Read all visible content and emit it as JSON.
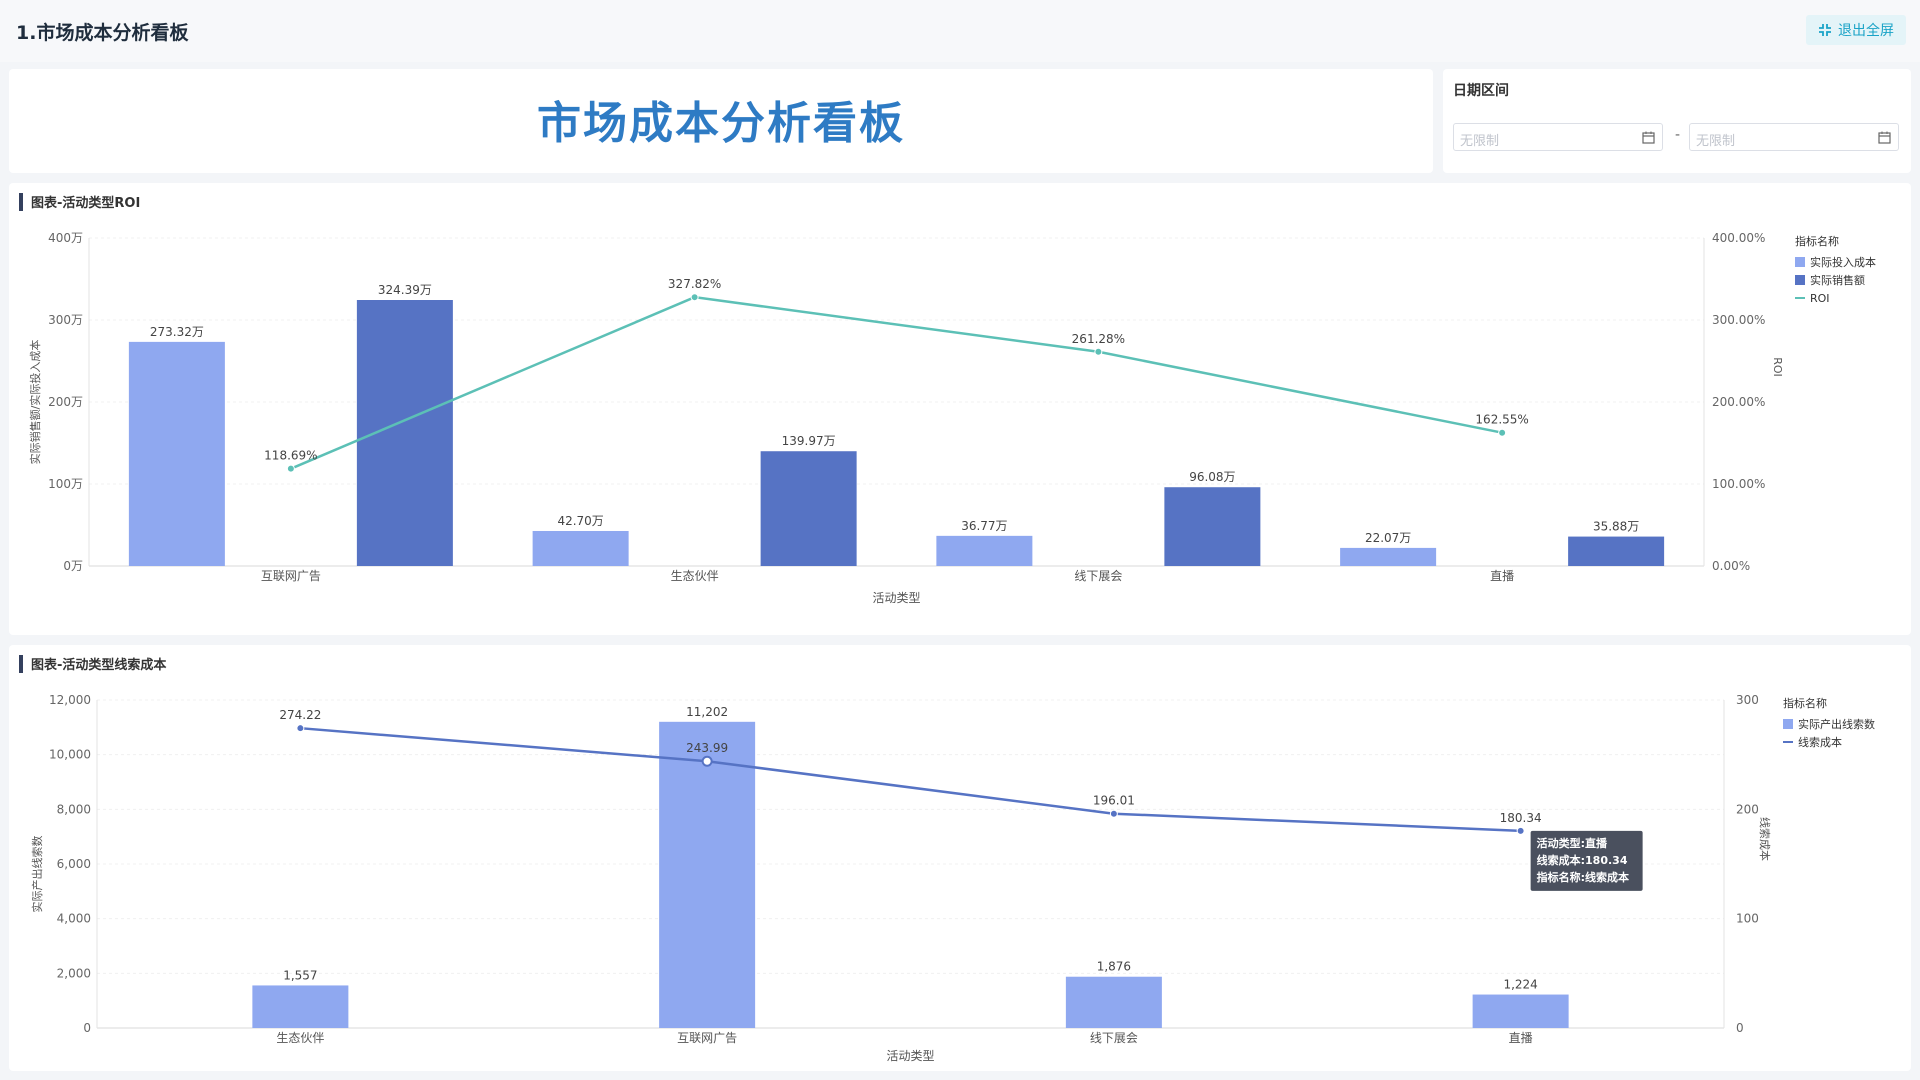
{
  "page": {
    "title": "1.市场成本分析看板",
    "exit_label": "退出全屏"
  },
  "banner": {
    "title": "市场成本分析看板"
  },
  "filter": {
    "label": "日期区间",
    "start_placeholder": "无限制",
    "end_placeholder": "无限制",
    "separator": "-"
  },
  "colors": {
    "cost": "#8fa8f0",
    "sales": "#5673c4",
    "roi_line": "#5cc0b6",
    "lead_line": "#5673c4",
    "banner": "#2e7bc4",
    "accent": "#1aa3c7"
  },
  "chart1": {
    "title": "图表-活动类型ROI",
    "chart_data": {
      "type": "bar",
      "categories": [
        "互联网广告",
        "生态伙伴",
        "线下展会",
        "直播"
      ],
      "series": [
        {
          "name": "实际投入成本",
          "values": [
            273.32,
            42.7,
            36.77,
            22.07
          ],
          "labels": [
            "273.32万",
            "42.70万",
            "36.77万",
            "22.07万"
          ]
        },
        {
          "name": "实际销售额",
          "values": [
            324.39,
            139.97,
            96.08,
            35.88
          ],
          "labels": [
            "324.39万",
            "139.97万",
            "96.08万",
            "35.88万"
          ]
        },
        {
          "name": "ROI",
          "type": "line",
          "axis": "right",
          "values": [
            118.69,
            327.82,
            261.28,
            162.55
          ],
          "labels": [
            "118.69%",
            "327.82%",
            "261.28%",
            "162.55%"
          ]
        }
      ],
      "xlabel": "活动类型",
      "ylabel": "实际销售额/实际投入成本",
      "y2label": "ROI",
      "ylim": [
        0,
        400
      ],
      "y2lim": [
        0,
        400
      ],
      "yticks": [
        "0万",
        "100万",
        "200万",
        "300万",
        "400万"
      ],
      "y2ticks": [
        "0.00%",
        "100.00%",
        "200.00%",
        "300.00%",
        "400.00%"
      ],
      "legend_title": "指标名称",
      "legend": "top-right"
    }
  },
  "chart2": {
    "title": "图表-活动类型线索成本",
    "chart_data": {
      "type": "bar",
      "categories": [
        "生态伙伴",
        "互联网广告",
        "线下展会",
        "直播"
      ],
      "series": [
        {
          "name": "实际产出线索数",
          "values": [
            1557,
            11202,
            1876,
            1224
          ],
          "labels": [
            "1,557",
            "11,202",
            "1,876",
            "1,224"
          ]
        },
        {
          "name": "线索成本",
          "type": "line",
          "axis": "right",
          "values": [
            274.22,
            243.99,
            196.01,
            180.34
          ],
          "labels": [
            "274.22",
            "243.99",
            "196.01",
            "180.34"
          ]
        }
      ],
      "xlabel": "活动类型",
      "ylabel": "实际产出线索数",
      "y2label": "线索成本",
      "yticks": [
        "0",
        "2,000",
        "4,000",
        "6,000",
        "8,000",
        "10,000",
        "12,000"
      ],
      "y2ticks": [
        "0",
        "100",
        "200",
        "300"
      ],
      "legend_title": "指标名称",
      "legend": "top-right"
    },
    "tooltip": {
      "lines": [
        "活动类型:直播",
        "线索成本:180.34",
        "指标名称:线索成本"
      ]
    }
  }
}
